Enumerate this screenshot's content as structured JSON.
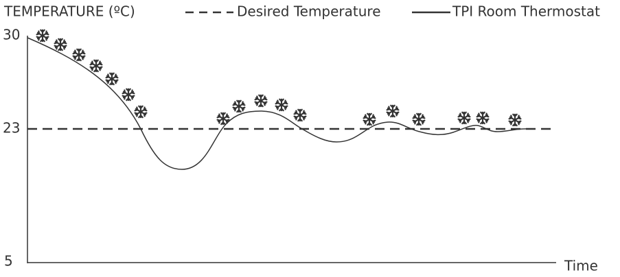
{
  "y_axis_title": "TEMPERATURE (ºC)",
  "legend": {
    "desired": "Desired Temperature",
    "tpi": "TPI Room Thermostat"
  },
  "y_tick_labels": [
    "30",
    "23",
    "5"
  ],
  "x_axis_label": "Time"
}
